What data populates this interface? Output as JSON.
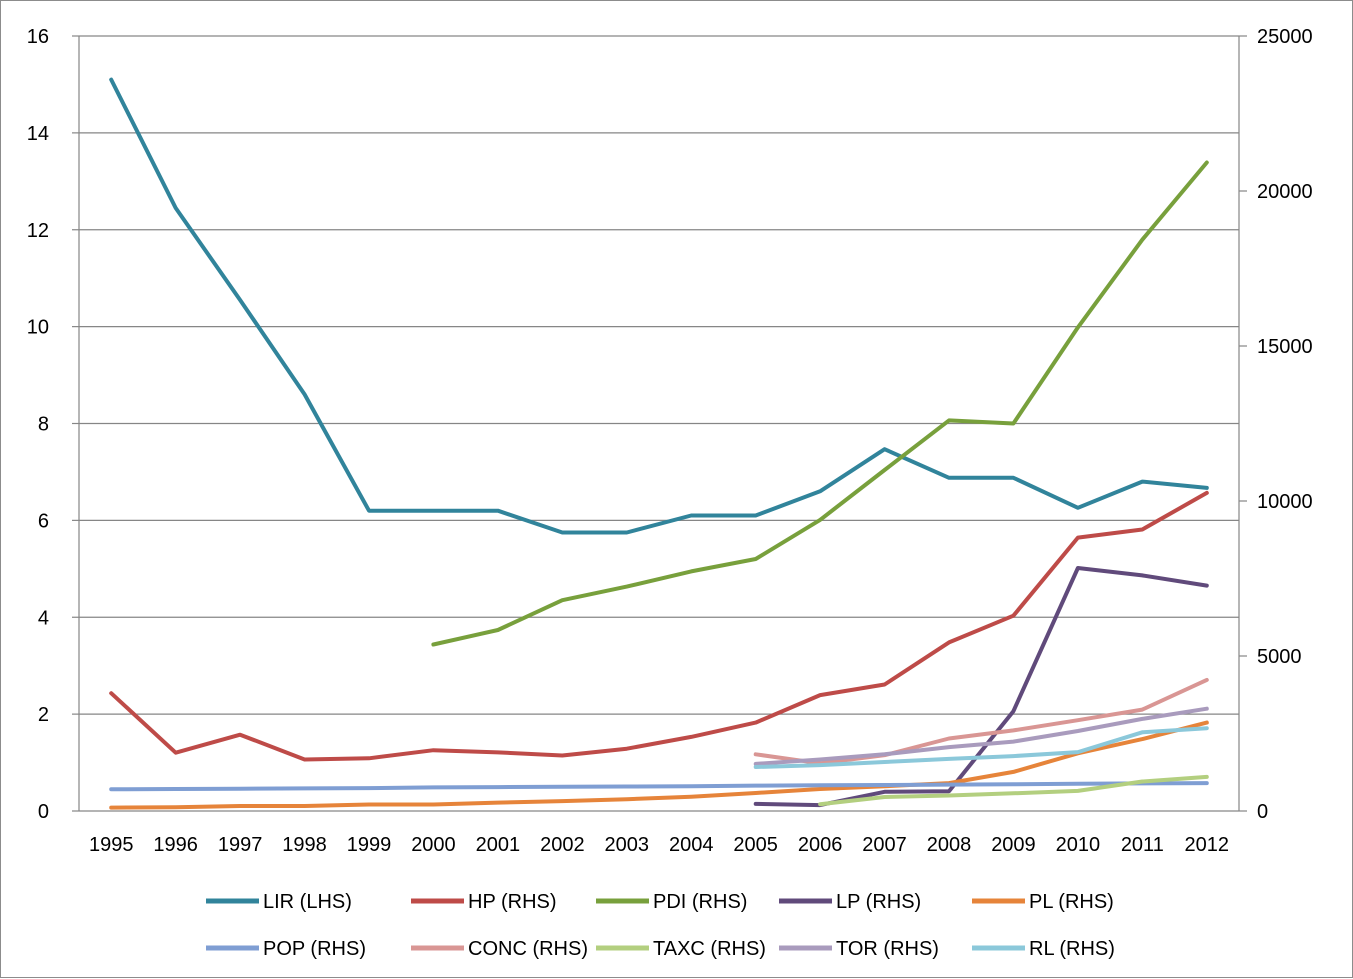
{
  "chart_data": {
    "type": "line",
    "title": "",
    "x": [
      "1995",
      "1996",
      "1997",
      "1998",
      "1999",
      "2000",
      "2001",
      "2002",
      "2003",
      "2004",
      "2005",
      "2006",
      "2007",
      "2008",
      "2009",
      "2010",
      "2011",
      "2012"
    ],
    "y_left": {
      "ylim": [
        0,
        16
      ],
      "ticks": [
        "0",
        "2",
        "4",
        "6",
        "8",
        "10",
        "12",
        "14",
        "16"
      ]
    },
    "y_right": {
      "ylim": [
        0,
        25000
      ],
      "ticks": [
        "0",
        "5000",
        "10000",
        "15000",
        "20000",
        "25000"
      ]
    },
    "grid": "horizontal",
    "legend_position": "bottom",
    "series": [
      {
        "name": "LIR (LHS)",
        "axis": "left",
        "color": "#31849b",
        "values": [
          15.1,
          12.45,
          10.55,
          8.6,
          6.2,
          6.2,
          6.2,
          5.75,
          5.75,
          6.1,
          6.1,
          6.6,
          7.47,
          6.88,
          6.88,
          6.26,
          6.8,
          6.67
        ]
      },
      {
        "name": "HP (RHS)",
        "axis": "right",
        "color": "#be4b48",
        "values": [
          3800,
          1880,
          2460,
          1660,
          1700,
          1960,
          1890,
          1790,
          2010,
          2390,
          2850,
          3740,
          4080,
          5440,
          6300,
          8820,
          9080,
          10260
        ]
      },
      {
        "name": "PDI (RHS)",
        "axis": "right",
        "color": "#78a03c",
        "values": [
          null,
          null,
          null,
          null,
          null,
          5370,
          5840,
          6800,
          7240,
          7730,
          8130,
          9390,
          11000,
          12600,
          12500,
          15600,
          18430,
          20920
        ]
      },
      {
        "name": "LP (RHS)",
        "axis": "right",
        "color": "#604a7b",
        "values": [
          null,
          null,
          null,
          null,
          null,
          null,
          null,
          null,
          null,
          null,
          230,
          190,
          620,
          640,
          3220,
          7840,
          7600,
          7270
        ]
      },
      {
        "name": "PL (RHS)",
        "axis": "right",
        "color": "#e6843a",
        "values": [
          110,
          120,
          160,
          160,
          210,
          210,
          270,
          320,
          380,
          460,
          580,
          710,
          800,
          900,
          1260,
          1860,
          2320,
          2850
        ]
      },
      {
        "name": "POP (RHS)",
        "axis": "right",
        "color": "#7f9ed3",
        "values": [
          700,
          710,
          720,
          730,
          740,
          760,
          770,
          780,
          790,
          800,
          820,
          830,
          840,
          850,
          860,
          880,
          890,
          900
        ]
      },
      {
        "name": "CONC (RHS)",
        "axis": "right",
        "color": "#d99694",
        "values": [
          null,
          null,
          null,
          null,
          null,
          null,
          null,
          null,
          null,
          null,
          1830,
          1540,
          1800,
          2340,
          2600,
          2930,
          3270,
          4230
        ]
      },
      {
        "name": "TAXC (RHS)",
        "axis": "right",
        "color": "#b3cf7f",
        "values": [
          null,
          null,
          null,
          null,
          null,
          null,
          null,
          null,
          null,
          null,
          null,
          220,
          450,
          500,
          570,
          650,
          950,
          1100
        ]
      },
      {
        "name": "TOR (RHS)",
        "axis": "right",
        "color": "#a99bbd",
        "values": [
          null,
          null,
          null,
          null,
          null,
          null,
          null,
          null,
          null,
          null,
          1520,
          1660,
          1830,
          2060,
          2240,
          2580,
          2970,
          3300
        ]
      },
      {
        "name": "RL (RHS)",
        "axis": "right",
        "color": "#8bc8da",
        "values": [
          null,
          null,
          null,
          null,
          null,
          null,
          null,
          null,
          null,
          null,
          1420,
          1480,
          1580,
          1680,
          1770,
          1900,
          2540,
          2670
        ]
      }
    ]
  }
}
